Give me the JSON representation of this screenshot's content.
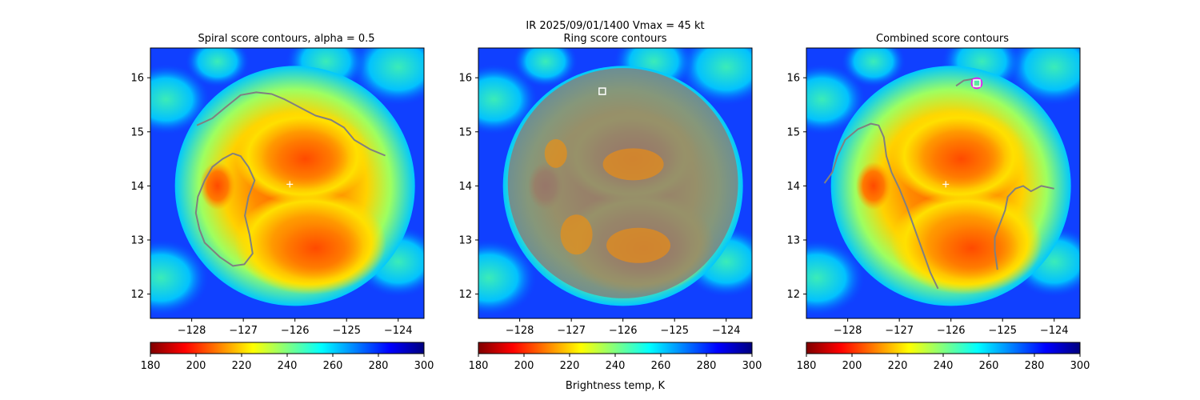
{
  "figure": {
    "suptitle_line1": "IR  2025/09/01/1400    Vmax = 45 kt",
    "colorbar_label": "Brightness temp, K"
  },
  "colormap": {
    "name": "jet_r",
    "stops": [
      "#7f0000",
      "#ff0000",
      "#ff8000",
      "#ffff00",
      "#80ff80",
      "#00ffff",
      "#0080ff",
      "#0000ff",
      "#00007f"
    ],
    "range": [
      180,
      300
    ],
    "ticks": [
      180,
      200,
      220,
      240,
      260,
      280,
      300
    ]
  },
  "colors": {
    "contour": "#808080",
    "center_marker": "#ffffff",
    "peak_square": "#ffffff",
    "peak_circle": "#ff00ff"
  },
  "chart_data": [
    {
      "type": "heatmap",
      "title": "Spiral score contours, alpha =  0.5",
      "xlim": [
        -128.8,
        -123.5
      ],
      "ylim": [
        11.55,
        16.55
      ],
      "xticks": [
        -128,
        -127,
        -126,
        -125,
        -124
      ],
      "yticks": [
        12,
        13,
        14,
        15,
        16
      ],
      "center_marker": {
        "x": -126.1,
        "y": 14.03
      },
      "contours": [
        [
          [
            -127.9,
            15.12
          ],
          [
            -127.6,
            15.25
          ],
          [
            -127.35,
            15.45
          ],
          [
            -127.05,
            15.68
          ],
          [
            -126.75,
            15.73
          ],
          [
            -126.45,
            15.7
          ],
          [
            -126.2,
            15.6
          ],
          [
            -125.9,
            15.45
          ],
          [
            -125.6,
            15.3
          ],
          [
            -125.3,
            15.22
          ],
          [
            -125.05,
            15.08
          ],
          [
            -124.85,
            14.85
          ],
          [
            -124.55,
            14.68
          ],
          [
            -124.25,
            14.56
          ]
        ],
        [
          [
            -127.2,
            14.6
          ],
          [
            -127.4,
            14.5
          ],
          [
            -127.6,
            14.35
          ],
          [
            -127.75,
            14.1
          ],
          [
            -127.88,
            13.8
          ],
          [
            -127.92,
            13.5
          ],
          [
            -127.85,
            13.2
          ],
          [
            -127.75,
            12.95
          ],
          [
            -127.45,
            12.68
          ],
          [
            -127.2,
            12.52
          ],
          [
            -126.98,
            12.55
          ],
          [
            -126.82,
            12.75
          ],
          [
            -126.88,
            13.1
          ],
          [
            -126.97,
            13.45
          ],
          [
            -126.9,
            13.8
          ],
          [
            -126.78,
            14.1
          ],
          [
            -126.9,
            14.35
          ],
          [
            -127.05,
            14.55
          ],
          [
            -127.2,
            14.6
          ]
        ]
      ]
    },
    {
      "type": "heatmap",
      "title": "Ring score contours",
      "xlim": [
        -128.8,
        -123.5
      ],
      "ylim": [
        11.55,
        16.55
      ],
      "xticks": [
        -128,
        -127,
        -126,
        -125,
        -124
      ],
      "yticks": [
        12,
        13,
        14,
        15,
        16
      ],
      "ring_region": {
        "center": [
          -126.0,
          14.05
        ],
        "radius_deg": 2.23
      },
      "peak_marker": {
        "x": -126.4,
        "y": 15.75
      }
    },
    {
      "type": "heatmap",
      "title": "Combined score contours",
      "xlim": [
        -128.8,
        -123.5
      ],
      "ylim": [
        11.55,
        16.55
      ],
      "xticks": [
        -128,
        -127,
        -126,
        -125,
        -124
      ],
      "yticks": [
        12,
        13,
        14,
        15,
        16
      ],
      "center_marker": {
        "x": -126.1,
        "y": 14.03
      },
      "peak_marker": {
        "x": -125.5,
        "y": 15.9
      },
      "contours": [
        [
          [
            -128.45,
            14.05
          ],
          [
            -128.3,
            14.25
          ],
          [
            -128.2,
            14.55
          ],
          [
            -128.05,
            14.85
          ],
          [
            -127.8,
            15.05
          ],
          [
            -127.55,
            15.15
          ],
          [
            -127.4,
            15.12
          ],
          [
            -127.3,
            14.9
          ],
          [
            -127.25,
            14.55
          ],
          [
            -127.15,
            14.25
          ],
          [
            -127.0,
            13.95
          ],
          [
            -126.85,
            13.6
          ],
          [
            -126.7,
            13.2
          ],
          [
            -126.55,
            12.8
          ],
          [
            -126.4,
            12.4
          ],
          [
            -126.25,
            12.1
          ]
        ],
        [
          [
            -124.0,
            13.95
          ],
          [
            -124.25,
            14.0
          ],
          [
            -124.45,
            13.9
          ],
          [
            -124.6,
            14.0
          ],
          [
            -124.75,
            13.95
          ],
          [
            -124.9,
            13.8
          ],
          [
            -124.95,
            13.55
          ],
          [
            -125.05,
            13.3
          ],
          [
            -125.15,
            13.05
          ],
          [
            -125.15,
            12.8
          ],
          [
            -125.1,
            12.45
          ]
        ],
        [
          [
            -125.9,
            15.85
          ],
          [
            -125.75,
            15.95
          ],
          [
            -125.55,
            15.98
          ]
        ]
      ]
    }
  ]
}
